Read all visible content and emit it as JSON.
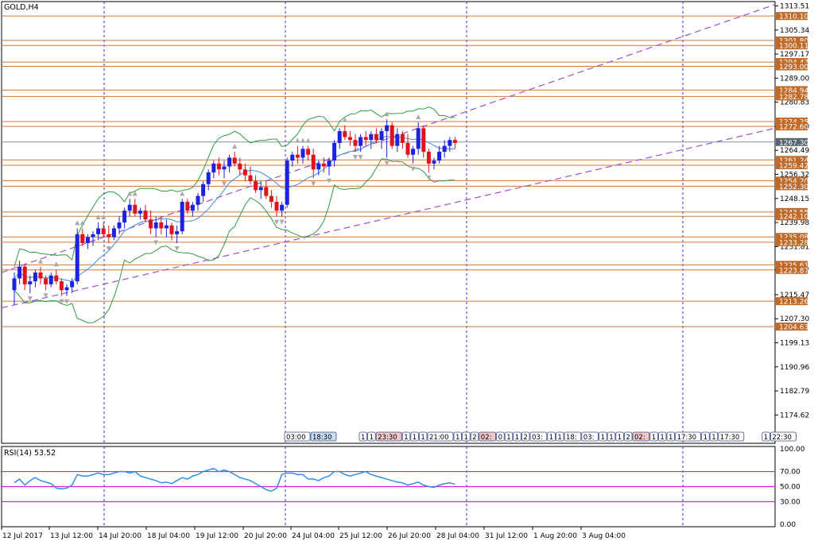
{
  "main_title": "GOLD,H4",
  "rsi_title": "RSI(14) 53.52",
  "colors": {
    "bull": "#1c22e0",
    "bear": "#e0121a",
    "grid": "#2a2fd8",
    "level": "#d07a38",
    "channel": "#a04fd6",
    "band": "#2e9b45",
    "ma": "#3d8fe0",
    "rsi_line": "#2f8fe8",
    "rsi_level": "#d51ed5",
    "price_box": "#c06a2a",
    "current_box": "#5a6470"
  },
  "chart_data": {
    "type": "candlestick",
    "price_axis": {
      "min": 1165,
      "max": 1315,
      "ticks": [
        "1313.51",
        "1305.34",
        "1297.17",
        "1289.00",
        "1280.83",
        "1272.60",
        "1264.49",
        "1256.32",
        "1248.15",
        "1239.98",
        "1231.81",
        "1223.87",
        "1215.47",
        "1207.30",
        "1199.13",
        "1190.96",
        "1182.79",
        "1174.62"
      ]
    },
    "x_labels": [
      "12 Jul 2017",
      "13 Jul 12:00",
      "14 Jul 20:00",
      "18 Jul 04:00",
      "19 Jul 12:00",
      "20 Jul 20:00",
      "24 Jul 04:00",
      "25 Jul 12:00",
      "26 Jul 20:00",
      "28 Jul 04:00",
      "31 Jul 12:00",
      "1 Aug 20:00",
      "3 Aug 04:00"
    ],
    "levels": [
      "1310.10",
      "1301.80",
      "1300.11",
      "1294.47",
      "1293.00",
      "1284.94",
      "1282.78",
      "1274.25",
      "1272.60",
      "1261.24",
      "1259.42",
      "1254.20",
      "1252.30",
      "1243.55",
      "1242.10",
      "1235.08",
      "1233.28",
      "1225.61",
      "1223.87",
      "1213.26",
      "1204.63"
    ],
    "current_price": "1267.30",
    "candles": [
      [
        1217,
        1223,
        1212,
        1221
      ],
      [
        1221,
        1227,
        1219,
        1225
      ],
      [
        1225,
        1226,
        1217,
        1219
      ],
      [
        1219,
        1222,
        1216,
        1220
      ],
      [
        1220,
        1224,
        1218,
        1223
      ],
      [
        1223,
        1225,
        1219,
        1221
      ],
      [
        1221,
        1222,
        1217,
        1219
      ],
      [
        1219,
        1223,
        1218,
        1222
      ],
      [
        1222,
        1224,
        1219,
        1220
      ],
      [
        1220,
        1221,
        1215,
        1217
      ],
      [
        1217,
        1219,
        1215,
        1218
      ],
      [
        1218,
        1221,
        1216,
        1220
      ],
      [
        1220,
        1238,
        1219,
        1236
      ],
      [
        1236,
        1238,
        1232,
        1233
      ],
      [
        1233,
        1236,
        1231,
        1235
      ],
      [
        1235,
        1237,
        1232,
        1236
      ],
      [
        1236,
        1240,
        1234,
        1238
      ],
      [
        1238,
        1240,
        1235,
        1236
      ],
      [
        1236,
        1239,
        1233,
        1235
      ],
      [
        1235,
        1239,
        1234,
        1238
      ],
      [
        1238,
        1242,
        1236,
        1240
      ],
      [
        1240,
        1245,
        1238,
        1244
      ],
      [
        1244,
        1248,
        1242,
        1246
      ],
      [
        1246,
        1248,
        1242,
        1243
      ],
      [
        1243,
        1245,
        1241,
        1244
      ],
      [
        1244,
        1246,
        1240,
        1241
      ],
      [
        1241,
        1244,
        1236,
        1238
      ],
      [
        1238,
        1242,
        1235,
        1240
      ],
      [
        1240,
        1242,
        1236,
        1238
      ],
      [
        1238,
        1241,
        1235,
        1239
      ],
      [
        1239,
        1240,
        1234,
        1236
      ],
      [
        1236,
        1239,
        1233,
        1237
      ],
      [
        1237,
        1248,
        1236,
        1247
      ],
      [
        1247,
        1248,
        1243,
        1244
      ],
      [
        1244,
        1247,
        1242,
        1246
      ],
      [
        1246,
        1250,
        1244,
        1249
      ],
      [
        1249,
        1254,
        1247,
        1253
      ],
      [
        1253,
        1258,
        1251,
        1257
      ],
      [
        1257,
        1261,
        1255,
        1260
      ],
      [
        1260,
        1262,
        1256,
        1258
      ],
      [
        1258,
        1261,
        1255,
        1259
      ],
      [
        1259,
        1263,
        1257,
        1262
      ],
      [
        1262,
        1264,
        1259,
        1260
      ],
      [
        1260,
        1262,
        1256,
        1258
      ],
      [
        1258,
        1260,
        1254,
        1256
      ],
      [
        1256,
        1259,
        1253,
        1254
      ],
      [
        1254,
        1256,
        1250,
        1251
      ],
      [
        1251,
        1254,
        1248,
        1252
      ],
      [
        1252,
        1254,
        1248,
        1249
      ],
      [
        1249,
        1251,
        1245,
        1247
      ],
      [
        1247,
        1249,
        1242,
        1244
      ],
      [
        1244,
        1247,
        1242,
        1246
      ],
      [
        1246,
        1262,
        1245,
        1261
      ],
      [
        1261,
        1264,
        1259,
        1263
      ],
      [
        1263,
        1266,
        1260,
        1262
      ],
      [
        1262,
        1266,
        1260,
        1265
      ],
      [
        1265,
        1266,
        1261,
        1263
      ],
      [
        1263,
        1265,
        1255,
        1258
      ],
      [
        1258,
        1261,
        1256,
        1260
      ],
      [
        1260,
        1262,
        1257,
        1259
      ],
      [
        1259,
        1262,
        1256,
        1261
      ],
      [
        1261,
        1268,
        1259,
        1267
      ],
      [
        1267,
        1272,
        1265,
        1271
      ],
      [
        1271,
        1273,
        1268,
        1269
      ],
      [
        1269,
        1271,
        1266,
        1268
      ],
      [
        1268,
        1270,
        1264,
        1266
      ],
      [
        1266,
        1270,
        1264,
        1269
      ],
      [
        1269,
        1271,
        1266,
        1268
      ],
      [
        1268,
        1271,
        1265,
        1270
      ],
      [
        1270,
        1272,
        1267,
        1268
      ],
      [
        1268,
        1272,
        1265,
        1271
      ],
      [
        1271,
        1275,
        1262,
        1273
      ],
      [
        1273,
        1274,
        1265,
        1266
      ],
      [
        1266,
        1272,
        1264,
        1270
      ],
      [
        1270,
        1271,
        1265,
        1267
      ],
      [
        1267,
        1270,
        1262,
        1263
      ],
      [
        1263,
        1266,
        1260,
        1265
      ],
      [
        1265,
        1274,
        1263,
        1272
      ],
      [
        1272,
        1273,
        1262,
        1264
      ],
      [
        1264,
        1265,
        1257,
        1260
      ],
      [
        1260,
        1262,
        1258,
        1261
      ],
      [
        1261,
        1266,
        1260,
        1264
      ],
      [
        1264,
        1268,
        1262,
        1266
      ],
      [
        1266,
        1269,
        1264,
        1268
      ],
      [
        1268,
        1269,
        1265,
        1267
      ]
    ],
    "rsi": {
      "current": 53.52,
      "levels": [
        70,
        50,
        30
      ],
      "ticks": [
        "100.00",
        "70.00",
        "50.00",
        "30.00",
        "0.00"
      ],
      "values": [
        55,
        60,
        52,
        58,
        62,
        58,
        56,
        54,
        48,
        47,
        48,
        52,
        66,
        64,
        64,
        66,
        68,
        66,
        66,
        68,
        70,
        70,
        68,
        70,
        64,
        62,
        60,
        58,
        55,
        56,
        54,
        58,
        62,
        60,
        64,
        66,
        70,
        72,
        74,
        70,
        72,
        70,
        66,
        62,
        60,
        58,
        54,
        50,
        46,
        44,
        48,
        66,
        68,
        68,
        66,
        66,
        60,
        60,
        58,
        62,
        64,
        70,
        70,
        66,
        64,
        66,
        68,
        70,
        66,
        64,
        62,
        60,
        58,
        56,
        55,
        52,
        54,
        56,
        52,
        50,
        49,
        52,
        54,
        55,
        53
      ]
    },
    "time_boxes": [
      "03:00",
      "18:30",
      "1",
      "1",
      "23:30",
      "1",
      "1",
      "1",
      "21:00",
      "1",
      "1",
      "2",
      "02:",
      "0",
      "1",
      "1",
      "2",
      "03:",
      "1",
      "1",
      "18:",
      "03:",
      "1",
      "1",
      "1",
      "2",
      "02:",
      "1",
      "1",
      "1",
      "17:30",
      "1",
      "1",
      "17:30",
      "1",
      "22:30"
    ]
  }
}
